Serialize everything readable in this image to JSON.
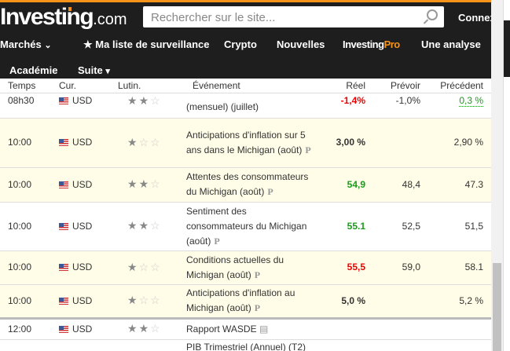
{
  "header": {
    "logo": "Investing",
    "logo_suffix": ".com",
    "search_placeholder": "Rechercher sur le site...",
    "login": "Connex"
  },
  "nav": {
    "items": [
      "Marchés",
      "Ma liste de surveillance",
      "Crypto",
      "Nouvelles",
      "Investing",
      "Pro",
      "Une analyse"
    ],
    "row2": [
      "Académie",
      "Suite"
    ]
  },
  "table": {
    "headers": [
      "Temps",
      "Cur.",
      "Lutin.",
      "Événement",
      "Réel",
      "Prévoir",
      "Précédent"
    ],
    "rows": [
      {
        "time": "08h30",
        "cur": "USD",
        "stars": 2,
        "event": "(mensuel) (juillet)",
        "actual": "-1,4%",
        "forecast": "-1,0%",
        "previous": "0,3 %"
      },
      {
        "time": "10:00",
        "cur": "USD",
        "stars": 1,
        "event": "Anticipations d'inflation sur 5 ans dans le Michigan (août)",
        "actual": "3,00 %",
        "forecast": "",
        "previous": "2,90 %"
      },
      {
        "time": "10:00",
        "cur": "USD",
        "stars": 2,
        "event": "Attentes des consommateurs du Michigan (août)",
        "actual": "54,9",
        "forecast": "48,4",
        "previous": "47.3"
      },
      {
        "time": "10:00",
        "cur": "USD",
        "stars": 2,
        "event": "Sentiment des consommateurs du Michigan (août)",
        "actual": "55.1",
        "forecast": "52,5",
        "previous": "51,5"
      },
      {
        "time": "10:00",
        "cur": "USD",
        "stars": 1,
        "event": "Conditions actuelles du Michigan (août)",
        "actual": "55,5",
        "forecast": "59,0",
        "previous": "58.1"
      },
      {
        "time": "10:00",
        "cur": "USD",
        "stars": 1,
        "event": "Anticipations d'inflation au Michigan (août)",
        "actual": "5,0 %",
        "forecast": "",
        "previous": "5,2 %"
      },
      {
        "time": "12:00",
        "cur": "USD",
        "stars": 2,
        "event": "Rapport WASDE",
        "actual": "",
        "forecast": "",
        "previous": ""
      },
      {
        "time": "",
        "cur": "",
        "stars": 0,
        "event": "PIB Trimestriel (Annuel) (T2)",
        "actual": "",
        "forecast": "",
        "previous": ""
      }
    ],
    "preliminary_mark": "P"
  },
  "colors": {
    "accent": "#f7931a",
    "header_bg": "#1e1e1e",
    "positive": "#1a9c1a",
    "negative": "#e00000",
    "highlight_row": "#fffde8"
  }
}
